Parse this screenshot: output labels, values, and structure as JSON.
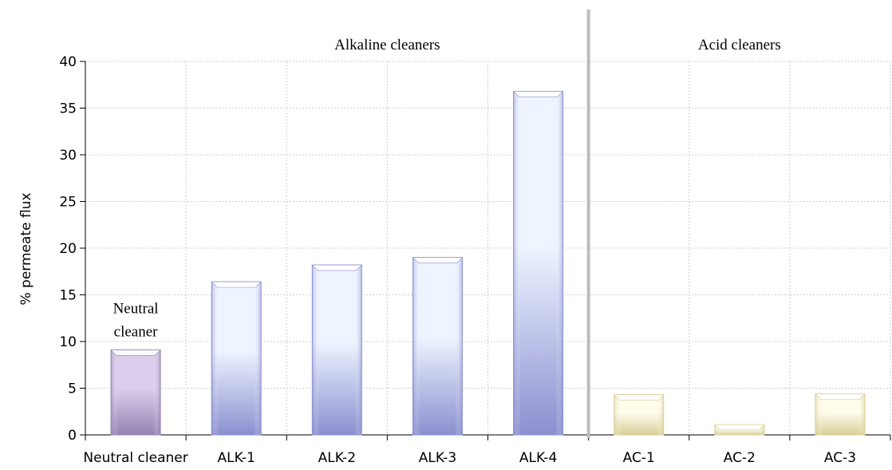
{
  "chart_data": {
    "type": "bar",
    "categories": [
      "Neutral cleaner",
      "ALK-1",
      "ALK-2",
      "ALK-3",
      "ALK-4",
      "AC-1",
      "AC-2",
      "AC-3"
    ],
    "values": [
      9.1,
      16.4,
      18.2,
      19.0,
      36.8,
      4.3,
      1.1,
      4.4
    ],
    "category_colors": [
      "purple",
      "blue",
      "blue",
      "blue",
      "blue",
      "cream",
      "cream",
      "cream"
    ],
    "ylabel": "% permeate flux",
    "xlabel": "",
    "ylim": [
      0,
      40
    ],
    "yticks": [
      0,
      5,
      10,
      15,
      20,
      25,
      30,
      35,
      40
    ],
    "grid": true,
    "groups": [
      {
        "label": "Alkaline cleaners",
        "from": 1,
        "to": 4
      },
      {
        "label": "Acid cleaners",
        "from": 5,
        "to": 7
      }
    ],
    "annotations": [
      {
        "lines": [
          "Neutral",
          "cleaner"
        ],
        "category": 0
      }
    ],
    "colors": {
      "purple": {
        "light": "#dccdec",
        "mid": "#b8a4d0",
        "dark": "#9384b5"
      },
      "blue": {
        "light": "#eef5ff",
        "mid": "#b6bff0",
        "dark": "#8a8fd0"
      },
      "cream": {
        "light": "#fffcec",
        "mid": "#f4ecc4",
        "dark": "#d8cf98"
      }
    }
  }
}
